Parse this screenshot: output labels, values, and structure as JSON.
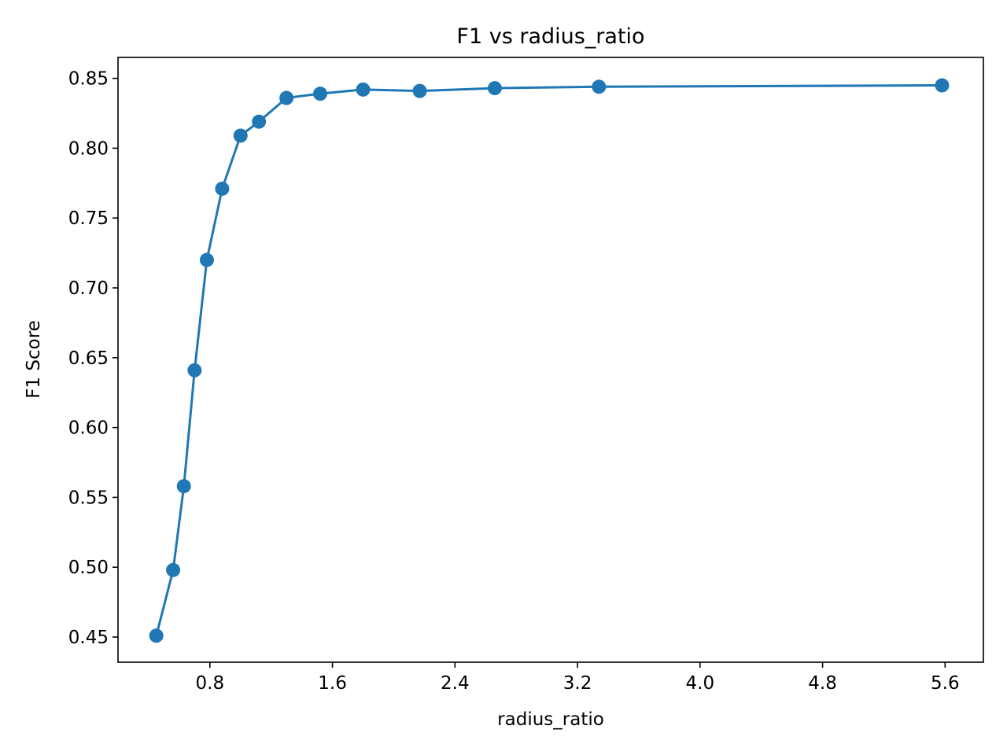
{
  "chart_data": {
    "type": "line",
    "title": "F1 vs radius_ratio",
    "xlabel": "radius_ratio",
    "ylabel": "F1 Score",
    "xlim": [
      0.2,
      5.85
    ],
    "ylim": [
      0.432,
      0.865
    ],
    "xticks": [
      0.8,
      1.6,
      2.4,
      3.2,
      4.0,
      4.8,
      5.6
    ],
    "xtick_labels": [
      "0.8",
      "1.6",
      "2.4",
      "3.2",
      "4.0",
      "4.8",
      "5.6"
    ],
    "yticks": [
      0.45,
      0.5,
      0.55,
      0.6,
      0.65,
      0.7,
      0.75,
      0.8,
      0.85
    ],
    "ytick_labels": [
      "0.45",
      "0.50",
      "0.55",
      "0.60",
      "0.65",
      "0.70",
      "0.75",
      "0.80",
      "0.85"
    ],
    "grid": false,
    "series": [
      {
        "color": "#1f77b4",
        "marker": "circle",
        "x": [
          0.45,
          0.56,
          0.63,
          0.7,
          0.78,
          0.88,
          1.0,
          1.12,
          1.3,
          1.52,
          1.8,
          2.17,
          2.66,
          3.34,
          5.58
        ],
        "y": [
          0.451,
          0.498,
          0.558,
          0.641,
          0.72,
          0.771,
          0.809,
          0.819,
          0.836,
          0.839,
          0.842,
          0.841,
          0.843,
          0.844,
          0.845
        ]
      }
    ]
  }
}
